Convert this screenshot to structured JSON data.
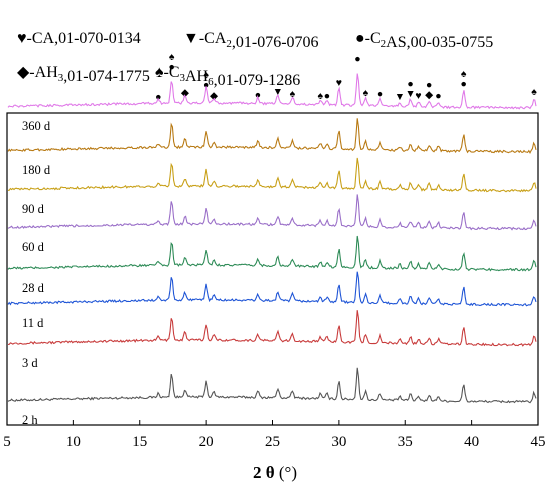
{
  "chart_data": {
    "type": "line",
    "xlabel_main": "2 θ",
    "xlabel_unit": "(°)",
    "xlim": [
      5,
      45
    ],
    "xticks": [
      5,
      10,
      15,
      20,
      25,
      30,
      35,
      40,
      45
    ],
    "legend": [
      {
        "symbol": "♥",
        "name": "CA",
        "sub": "",
        "ref": ",01-070-0134"
      },
      {
        "symbol": "▼",
        "name": "CA",
        "sub": "2",
        "ref": ",01-076-0706"
      },
      {
        "symbol": "●",
        "name": "C",
        "sub": "2",
        "tail": "AS",
        "ref": ",00-035-0755"
      },
      {
        "symbol": "◆",
        "name": "AH",
        "sub": "3",
        "ref": ",01-074-1775"
      },
      {
        "symbol": "♠",
        "name": "C",
        "sub": "3",
        "tail": "AH",
        "sub2": "6",
        "ref": ",01-079-1286"
      }
    ],
    "peaks": [
      {
        "x": 16.4,
        "h": 4
      },
      {
        "x": 17.4,
        "h": 24
      },
      {
        "x": 18.4,
        "h": 8
      },
      {
        "x": 20.0,
        "h": 16
      },
      {
        "x": 20.6,
        "h": 5
      },
      {
        "x": 23.9,
        "h": 6
      },
      {
        "x": 25.4,
        "h": 9
      },
      {
        "x": 26.5,
        "h": 7
      },
      {
        "x": 28.6,
        "h": 5
      },
      {
        "x": 29.1,
        "h": 5
      },
      {
        "x": 30.0,
        "h": 18
      },
      {
        "x": 31.4,
        "h": 32
      },
      {
        "x": 32.0,
        "h": 8
      },
      {
        "x": 33.1,
        "h": 7
      },
      {
        "x": 34.6,
        "h": 4
      },
      {
        "x": 35.4,
        "h": 7
      },
      {
        "x": 36.0,
        "h": 5
      },
      {
        "x": 36.8,
        "h": 6
      },
      {
        "x": 37.5,
        "h": 5
      },
      {
        "x": 39.4,
        "h": 17
      },
      {
        "x": 44.7,
        "h": 9
      }
    ],
    "series": [
      {
        "name": "2 h",
        "color": "#555555",
        "baseline": 0
      },
      {
        "name": "3 d",
        "color": "#c83c3c",
        "baseline": 57
      },
      {
        "name": "11 d",
        "color": "#1f55d6",
        "baseline": 97
      },
      {
        "name": "28 d",
        "color": "#2e8b57",
        "baseline": 132
      },
      {
        "name": "60 d",
        "color": "#9a6fc8",
        "baseline": 173
      },
      {
        "name": "90 d",
        "color": "#c8a018",
        "baseline": 211
      },
      {
        "name": "180 d",
        "color": "#b87a14",
        "baseline": 250
      },
      {
        "name": "360 d",
        "color": "#e07ae8",
        "baseline": 294
      }
    ],
    "phase_markers": [
      {
        "symbol": "●",
        "x": 16.4,
        "level": 0
      },
      {
        "symbol": "♠",
        "x": 17.4,
        "level": 2
      },
      {
        "symbol": "●",
        "x": 17.4,
        "level": 1
      },
      {
        "symbol": "◆",
        "x": 18.4,
        "level": 0
      },
      {
        "symbol": "♠",
        "x": 20.0,
        "level": 1
      },
      {
        "symbol": "●",
        "x": 20.0,
        "level": 0
      },
      {
        "symbol": "◆",
        "x": 20.6,
        "level": 0
      },
      {
        "symbol": "●",
        "x": 23.9,
        "level": 0
      },
      {
        "symbol": "▼",
        "x": 25.4,
        "level": 0
      },
      {
        "symbol": "♠",
        "x": 26.5,
        "level": 0
      },
      {
        "symbol": "♠",
        "x": 28.6,
        "level": 0
      },
      {
        "symbol": "●",
        "x": 29.1,
        "level": 0
      },
      {
        "symbol": "♥",
        "x": 30.0,
        "level": 0
      },
      {
        "symbol": "●",
        "x": 31.4,
        "level": 1
      },
      {
        "symbol": "♠",
        "x": 32.0,
        "level": 0
      },
      {
        "symbol": "●",
        "x": 33.1,
        "level": 0
      },
      {
        "symbol": "▼",
        "x": 34.6,
        "level": 0
      },
      {
        "symbol": "●",
        "x": 35.4,
        "level": 1
      },
      {
        "symbol": "▼",
        "x": 35.4,
        "level": 0
      },
      {
        "symbol": "♥",
        "x": 36.0,
        "level": 0
      },
      {
        "symbol": "●",
        "x": 36.8,
        "level": 1
      },
      {
        "symbol": "◆",
        "x": 36.8,
        "level": 0
      },
      {
        "symbol": "●",
        "x": 37.5,
        "level": 0
      },
      {
        "symbol": "♠",
        "x": 39.4,
        "level": 1
      },
      {
        "symbol": "●",
        "x": 39.4,
        "level": 0
      },
      {
        "symbol": "♠",
        "x": 44.7,
        "level": 0
      }
    ]
  }
}
